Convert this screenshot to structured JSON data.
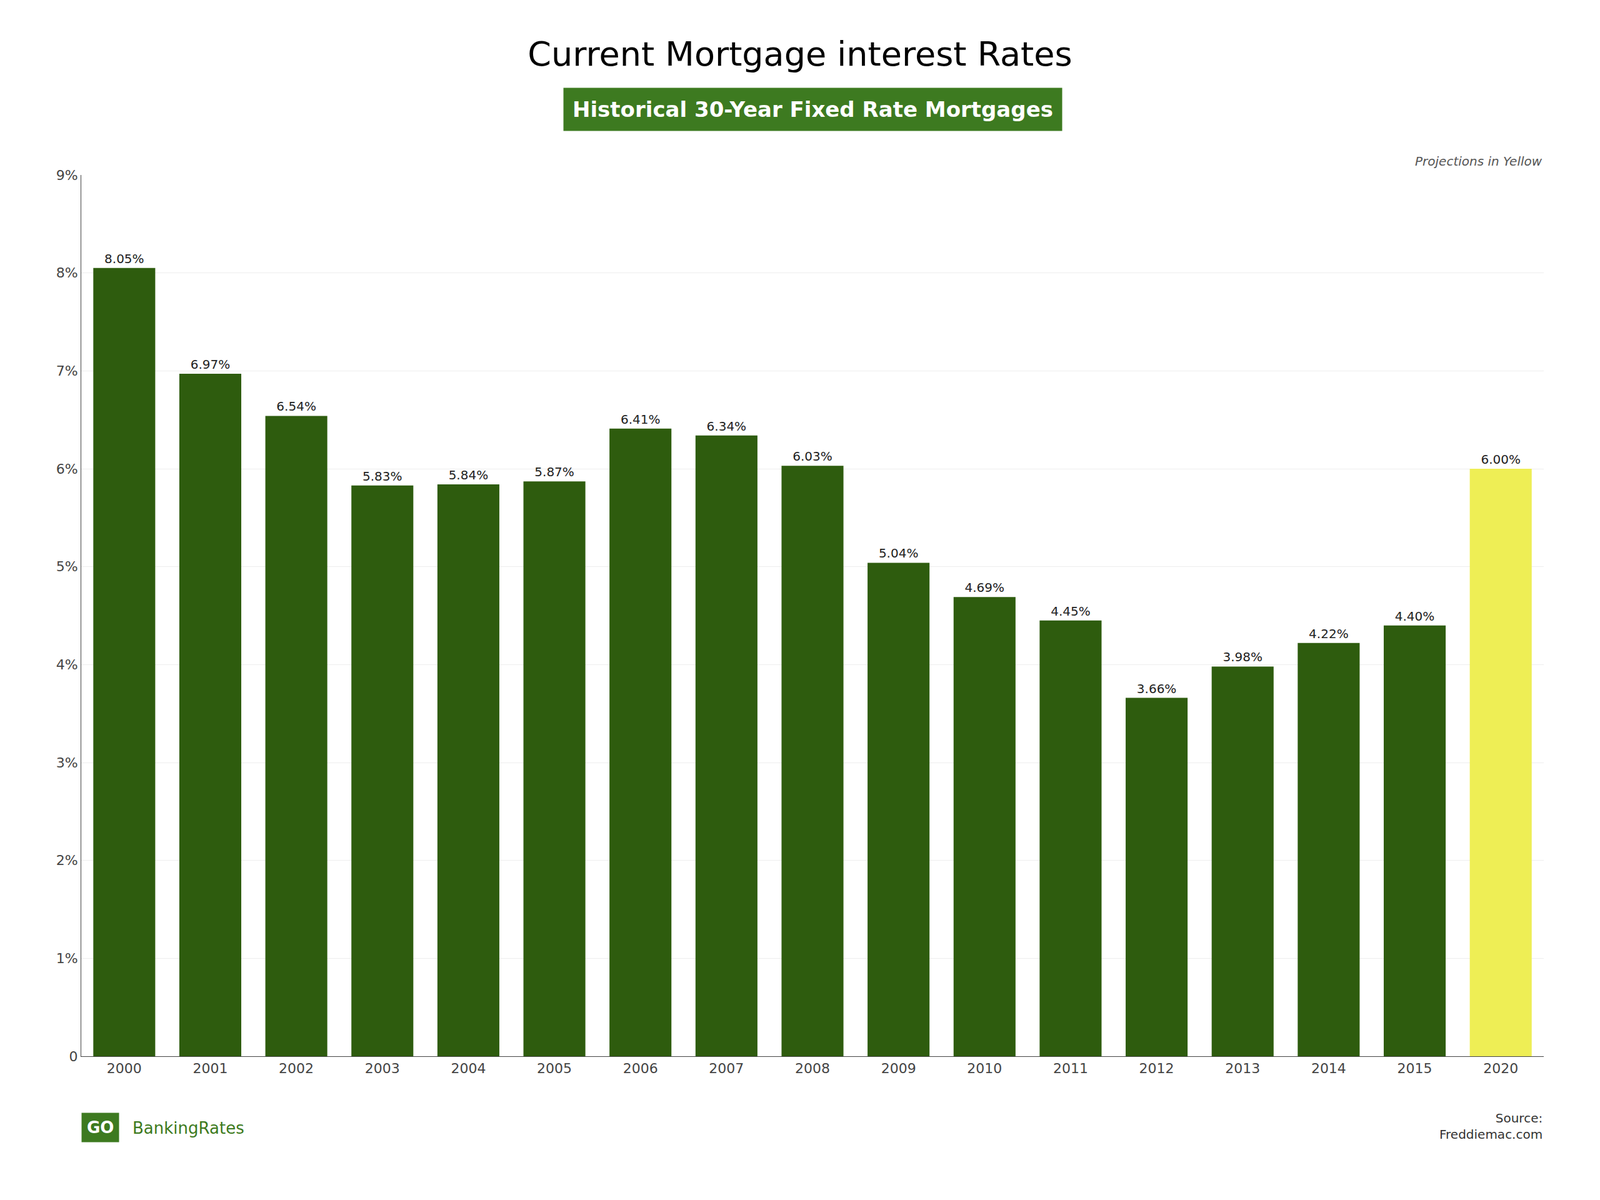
{
  "chart_data": {
    "type": "bar",
    "title": "Current Mortgage interest Rates",
    "subtitle": "Historical 30-Year Fixed Rate Mortgages",
    "categories": [
      "2000",
      "2001",
      "2002",
      "2003",
      "2004",
      "2005",
      "2006",
      "2007",
      "2008",
      "2009",
      "2010",
      "2011",
      "2012",
      "2013",
      "2014",
      "2015",
      "2020"
    ],
    "values": [
      8.05,
      6.97,
      6.54,
      5.83,
      5.84,
      5.87,
      6.41,
      6.34,
      6.03,
      5.04,
      4.69,
      4.45,
      3.66,
      3.98,
      4.22,
      4.4,
      6.0
    ],
    "value_labels": [
      "8.05%",
      "6.97%",
      "6.54%",
      "5.83%",
      "5.84%",
      "5.87%",
      "6.41%",
      "6.34%",
      "6.03%",
      "5.04%",
      "4.69%",
      "4.45%",
      "3.66%",
      "3.98%",
      "4.22%",
      "4.40%",
      "6.00%"
    ],
    "data_labels": true,
    "colors": [
      "#2e5c0e",
      "#2e5c0e",
      "#2e5c0e",
      "#2e5c0e",
      "#2e5c0e",
      "#2e5c0e",
      "#2e5c0e",
      "#2e5c0e",
      "#2e5c0e",
      "#2e5c0e",
      "#2e5c0e",
      "#2e5c0e",
      "#2e5c0e",
      "#2e5c0e",
      "#2e5c0e",
      "#2e5c0e",
      "#eeee55"
    ],
    "ylim": [
      0,
      9
    ],
    "yticks": [
      0,
      {
        "value": 1,
        "label": "1%"
      },
      {
        "value": 2,
        "label": "2%"
      },
      {
        "value": 3,
        "label": "3%"
      },
      {
        "value": 4,
        "label": "4%"
      },
      {
        "value": 5,
        "label": "5%"
      },
      {
        "value": 6,
        "label": "6%"
      },
      {
        "value": 7,
        "label": "7%"
      },
      {
        "value": 8,
        "label": "8%"
      },
      {
        "value": 9,
        "label": "9%"
      }
    ],
    "grid": true,
    "annotations": [
      "Projections in Yellow",
      "GO",
      "BankingRates",
      "Source:\nFreddiemac.com"
    ]
  }
}
